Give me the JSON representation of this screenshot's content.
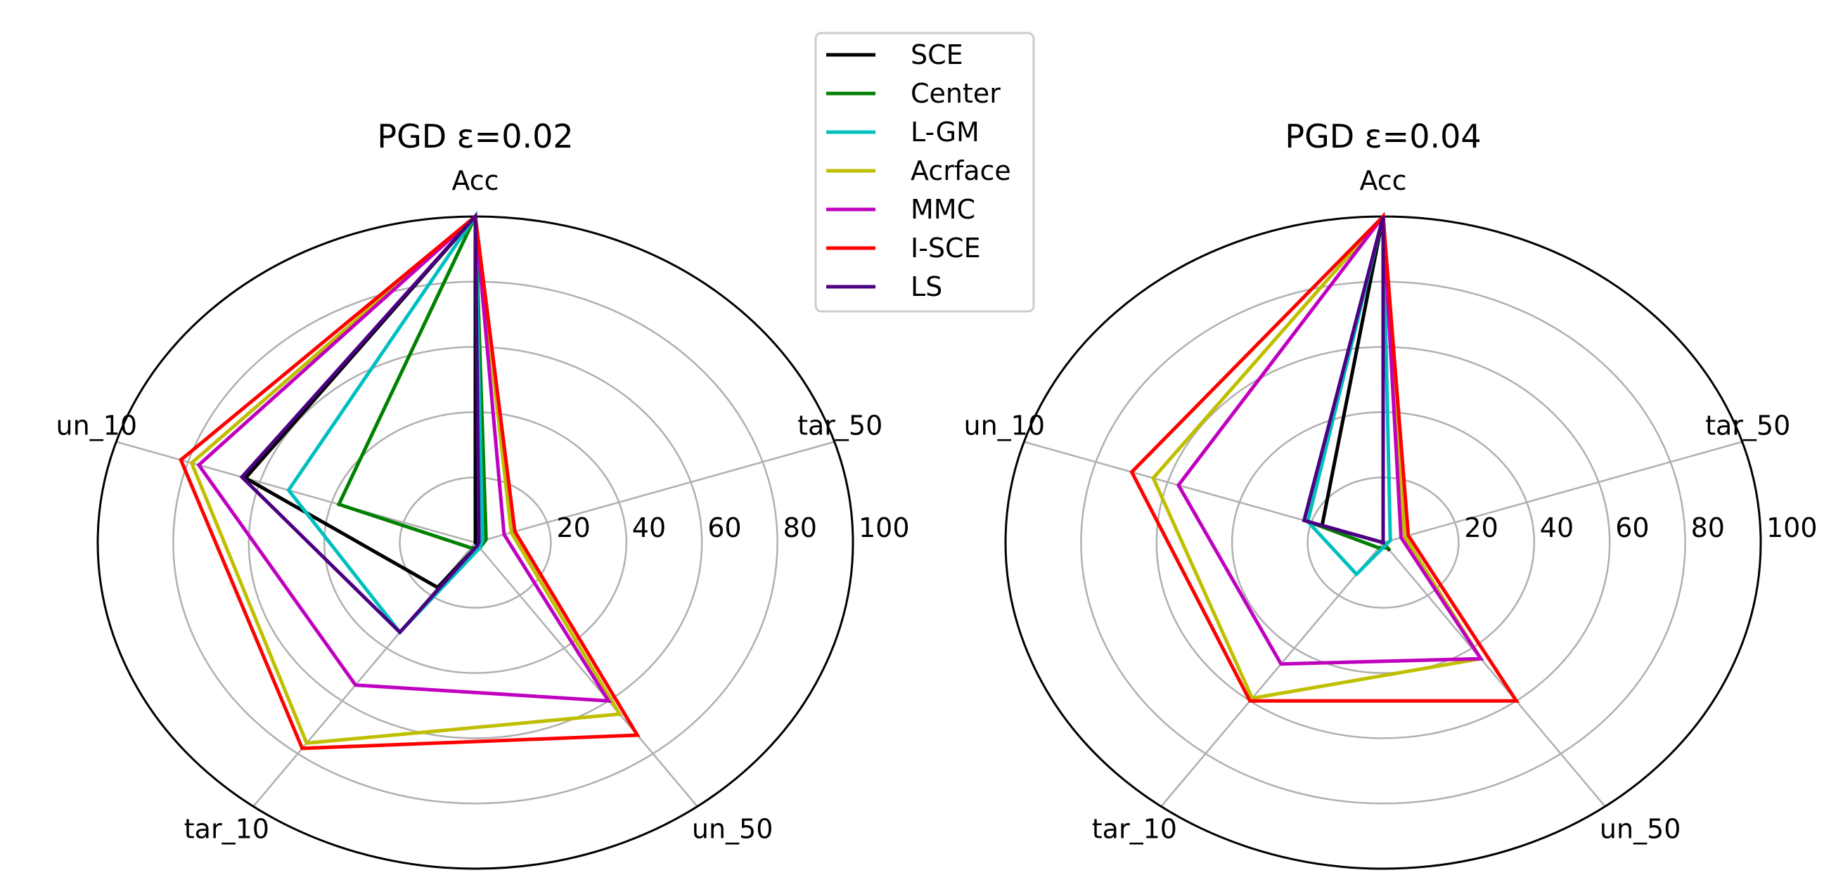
{
  "legend": {
    "entries": [
      {
        "name": "SCE",
        "color": "#000000"
      },
      {
        "name": "Center",
        "color": "#008000"
      },
      {
        "name": "L-GM",
        "color": "#00bfbf"
      },
      {
        "name": "Acrface",
        "color": "#bfbf00"
      },
      {
        "name": "MMC",
        "color": "#bf00bf"
      },
      {
        "name": "I-SCE",
        "color": "#ff0000"
      },
      {
        "name": "LS",
        "color": "#4b0082"
      }
    ],
    "placement": "top-center"
  },
  "chart_data": [
    {
      "type": "radar",
      "title": "PGD ε=0.02",
      "axes": [
        "Acc",
        "tar_50",
        "un_50",
        "tar_10",
        "un_10"
      ],
      "radial_ticks": [
        "20",
        "40",
        "60",
        "80",
        "100"
      ],
      "rlim": [
        0,
        100
      ],
      "grid": true,
      "series": [
        {
          "name": "SCE",
          "values": [
            100,
            0,
            1,
            17,
            64
          ]
        },
        {
          "name": "Center",
          "values": [
            100,
            3,
            2,
            2,
            38
          ]
        },
        {
          "name": "L-GM",
          "values": [
            100,
            2,
            2,
            34,
            52
          ]
        },
        {
          "name": "Acrface",
          "values": [
            100,
            10,
            65,
            76,
            79
          ]
        },
        {
          "name": "MMC",
          "values": [
            100,
            8,
            60,
            54,
            77
          ]
        },
        {
          "name": "I-SCE",
          "values": [
            100,
            11,
            73,
            78,
            82
          ]
        },
        {
          "name": "LS",
          "values": [
            100,
            1,
            1,
            34,
            65
          ]
        }
      ]
    },
    {
      "type": "radar",
      "title": "PGD ε=0.04",
      "axes": [
        "Acc",
        "tar_50",
        "un_50",
        "tar_10",
        "un_10"
      ],
      "radial_ticks": [
        "20",
        "40",
        "60",
        "80",
        "100"
      ],
      "rlim": [
        0,
        100
      ],
      "grid": true,
      "series": [
        {
          "name": "SCE",
          "values": [
            100,
            0,
            3,
            0,
            17
          ]
        },
        {
          "name": "Center",
          "values": [
            100,
            0,
            2,
            2,
            21
          ]
        },
        {
          "name": "L-GM",
          "values": [
            100,
            2,
            1,
            12,
            21
          ]
        },
        {
          "name": "Acrface",
          "values": [
            100,
            6,
            44,
            59,
            64
          ]
        },
        {
          "name": "MMC",
          "values": [
            100,
            5,
            44,
            46,
            57
          ]
        },
        {
          "name": "I-SCE",
          "values": [
            100,
            7,
            60,
            60,
            70
          ]
        },
        {
          "name": "LS",
          "values": [
            100,
            0,
            0,
            0,
            22
          ]
        }
      ]
    }
  ]
}
